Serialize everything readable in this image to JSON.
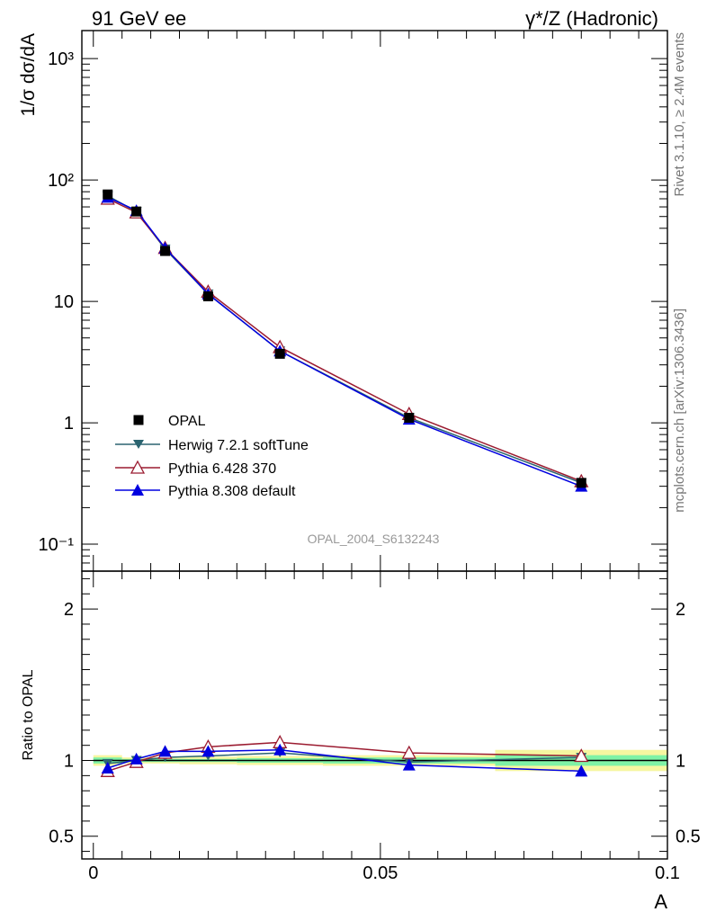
{
  "header": {
    "left_title": "91 GeV ee",
    "right_title": "γ*/Z (Hadronic)",
    "side_label_top": "Rivet 3.1.10, ≥ 2.4M events",
    "side_label_bottom": "mcplots.cern.ch [arXiv:1306.3436]",
    "watermark": "OPAL_2004_S6132243"
  },
  "chart_data": [
    {
      "type": "line",
      "panel": "main",
      "ylabel": "1/σ dσ/dA",
      "xlabel": "",
      "yscale": "log",
      "xlim": [
        -0.002,
        0.1
      ],
      "ylim": [
        0.06,
        1700
      ],
      "y_tick_labels": [
        "10⁻¹",
        "1",
        "10",
        "10²",
        "10³"
      ],
      "legend_position": "lower-left",
      "series": [
        {
          "name": "OPAL",
          "color": "#000000",
          "marker": "filled-square",
          "x": [
            0.0025,
            0.0075,
            0.0125,
            0.02,
            0.0325,
            0.055,
            0.085
          ],
          "y": [
            76,
            55,
            26,
            11,
            3.7,
            1.1,
            0.32
          ]
        },
        {
          "name": "Herwig 7.2.1 softTune",
          "color": "#2b6470",
          "marker": "filled-triangle-down",
          "x": [
            0.0025,
            0.0075,
            0.0125,
            0.02,
            0.0325,
            0.055,
            0.085
          ],
          "y": [
            74,
            55,
            27,
            11.5,
            3.9,
            1.1,
            0.32
          ]
        },
        {
          "name": "Pythia 6.428 370",
          "color": "#9b1b30",
          "marker": "open-triangle-up",
          "x": [
            0.0025,
            0.0075,
            0.0125,
            0.02,
            0.0325,
            0.055,
            0.085
          ],
          "y": [
            70,
            54,
            27.5,
            12,
            4.2,
            1.18,
            0.33
          ]
        },
        {
          "name": "Pythia 8.308 default",
          "color": "#0000e0",
          "marker": "filled-triangle-up",
          "x": [
            0.0025,
            0.0075,
            0.0125,
            0.02,
            0.0325,
            0.055,
            0.085
          ],
          "y": [
            72,
            56,
            27.5,
            11.5,
            3.9,
            1.07,
            0.3
          ]
        }
      ]
    },
    {
      "type": "line",
      "panel": "ratio",
      "ylabel": "Ratio to OPAL",
      "xlabel": "A",
      "xlim": [
        -0.002,
        0.1
      ],
      "ylim": [
        0.35,
        2.25
      ],
      "x_tick_labels": [
        "0",
        "0.05",
        "0.1"
      ],
      "y_tick_labels": [
        "0.5",
        "1",
        "2"
      ],
      "uncertainty_bands": {
        "inner_color": "#7ff2a6",
        "outer_color": "#f6f6a0",
        "bins": [
          {
            "x_low": 0.0,
            "x_high": 0.005,
            "inner": 0.02,
            "outer": 0.035
          },
          {
            "x_low": 0.005,
            "x_high": 0.01,
            "inner": 0.01,
            "outer": 0.02
          },
          {
            "x_low": 0.01,
            "x_high": 0.015,
            "inner": 0.01,
            "outer": 0.02
          },
          {
            "x_low": 0.015,
            "x_high": 0.025,
            "inner": 0.01,
            "outer": 0.025
          },
          {
            "x_low": 0.025,
            "x_high": 0.04,
            "inner": 0.015,
            "outer": 0.03
          },
          {
            "x_low": 0.04,
            "x_high": 0.07,
            "inner": 0.02,
            "outer": 0.035
          },
          {
            "x_low": 0.07,
            "x_high": 0.1,
            "inner": 0.035,
            "outer": 0.07
          }
        ]
      },
      "series": [
        {
          "name": "Herwig 7.2.1 softTune",
          "color": "#2b6470",
          "marker": "filled-triangle-down",
          "x": [
            0.0025,
            0.0075,
            0.0125,
            0.02,
            0.0325,
            0.055,
            0.085
          ],
          "y": [
            0.98,
            1.0,
            1.02,
            1.03,
            1.05,
            0.99,
            1.02
          ]
        },
        {
          "name": "Pythia 6.428 370",
          "color": "#9b1b30",
          "marker": "open-triangle-up",
          "x": [
            0.0025,
            0.0075,
            0.0125,
            0.02,
            0.0325,
            0.055,
            0.085
          ],
          "y": [
            0.93,
            0.99,
            1.05,
            1.09,
            1.12,
            1.05,
            1.03
          ]
        },
        {
          "name": "Pythia 8.308 default",
          "color": "#0000e0",
          "marker": "filled-triangle-up",
          "x": [
            0.0025,
            0.0075,
            0.0125,
            0.02,
            0.0325,
            0.055,
            0.085
          ],
          "y": [
            0.95,
            1.01,
            1.06,
            1.06,
            1.07,
            0.97,
            0.93
          ]
        }
      ]
    }
  ]
}
